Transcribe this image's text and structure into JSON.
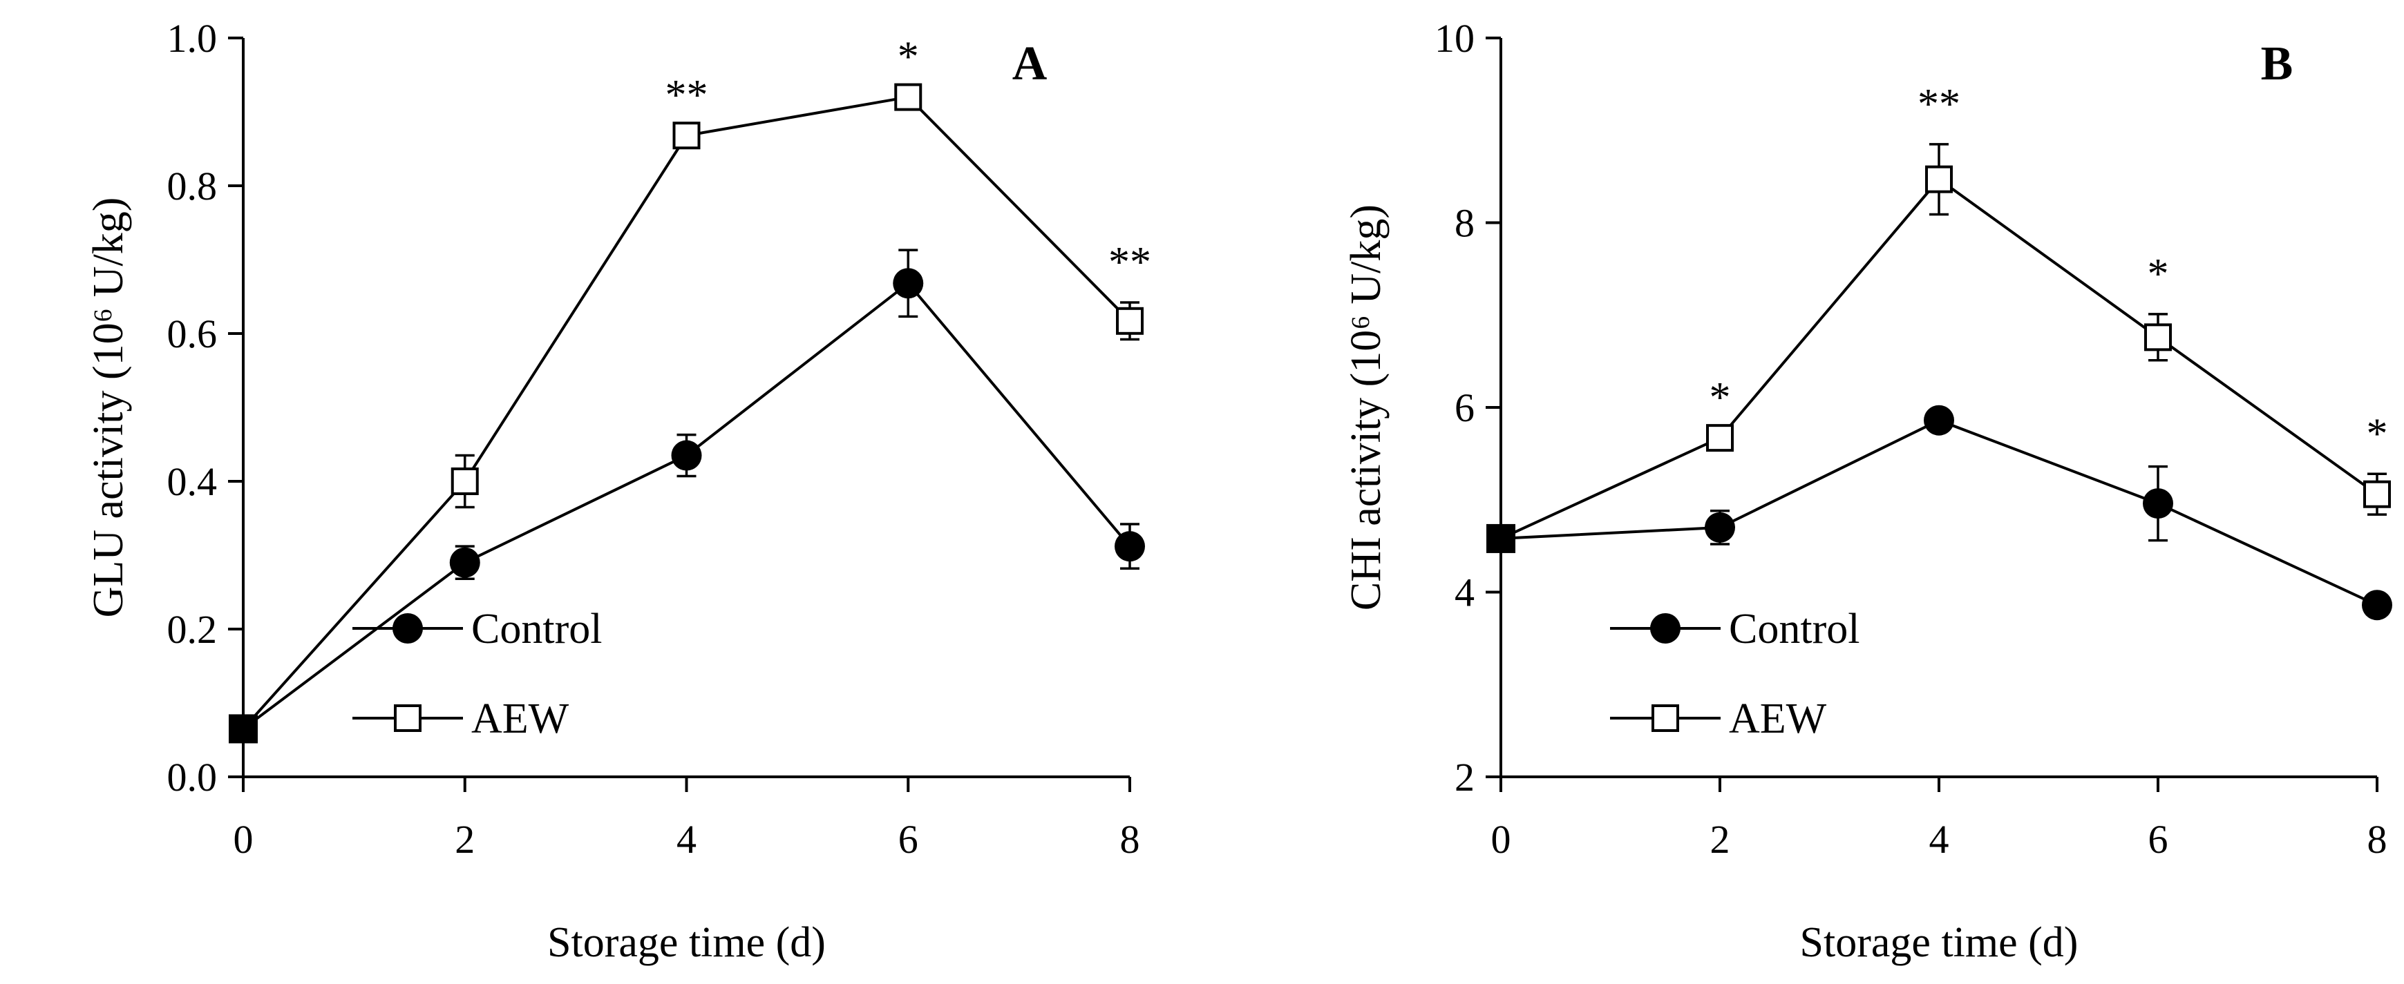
{
  "chart_data": [
    {
      "panel": "A",
      "type": "line",
      "xlabel": "Storage time (d)",
      "ylabel": "GLU activity (10⁶ U/kg)",
      "x": [
        0,
        2,
        4,
        6,
        8
      ],
      "xlim": [
        0,
        8
      ],
      "ylim": [
        0.0,
        1.0
      ],
      "yticks": [
        "0.0",
        "0.2",
        "0.4",
        "0.6",
        "0.8",
        "1.0"
      ],
      "xticks": [
        "0",
        "2",
        "4",
        "6",
        "8"
      ],
      "legend": "lower-center",
      "grid": false,
      "series": [
        {
          "name": "Control",
          "marker": "filled-circle",
          "values": [
            0.065,
            0.29,
            0.435,
            0.668,
            0.312
          ],
          "errors": [
            0.0,
            0.022,
            0.028,
            0.045,
            0.03
          ]
        },
        {
          "name": "AEW",
          "marker": "open-square",
          "values": [
            0.065,
            0.4,
            0.868,
            0.92,
            0.617
          ],
          "errors": [
            0.0,
            0.035,
            0.0,
            0.0,
            0.025
          ]
        }
      ],
      "significance": [
        {
          "x": 4,
          "label": "**"
        },
        {
          "x": 6,
          "label": "*"
        },
        {
          "x": 8,
          "label": "**"
        }
      ]
    },
    {
      "panel": "B",
      "type": "line",
      "xlabel": "Storage time (d)",
      "ylabel": "CHI activity (10⁶ U/kg)",
      "x": [
        0,
        2,
        4,
        6,
        8
      ],
      "xlim": [
        0,
        8
      ],
      "ylim": [
        2,
        10
      ],
      "yticks": [
        "2",
        "4",
        "6",
        "8",
        "10"
      ],
      "xticks": [
        "0",
        "2",
        "4",
        "6",
        "8"
      ],
      "legend": "lower-center",
      "grid": false,
      "series": [
        {
          "name": "Control",
          "marker": "filled-circle",
          "values": [
            4.58,
            4.7,
            5.86,
            4.96,
            3.86
          ],
          "errors": [
            0.0,
            0.18,
            0.0,
            0.4,
            0.0
          ]
        },
        {
          "name": "AEW",
          "marker": "open-square",
          "values": [
            4.58,
            5.67,
            8.47,
            6.76,
            5.06
          ],
          "errors": [
            0.0,
            0.0,
            0.38,
            0.25,
            0.22
          ]
        }
      ],
      "significance": [
        {
          "x": 2,
          "label": "*"
        },
        {
          "x": 4,
          "label": "**"
        },
        {
          "x": 6,
          "label": "*"
        },
        {
          "x": 8,
          "label": "*"
        }
      ]
    }
  ]
}
